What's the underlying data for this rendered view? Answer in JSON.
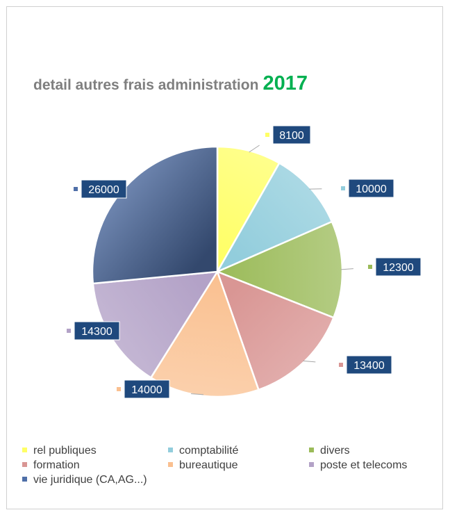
{
  "title": {
    "text": "detail autres frais administration",
    "year": "2017"
  },
  "chart_data": {
    "type": "pie",
    "title": "detail autres frais administration 2017",
    "slices": [
      {
        "label": "rel publiques",
        "value": 8100,
        "color": "#ffff66"
      },
      {
        "label": "comptabilité",
        "value": 10000,
        "color": "#92cddc"
      },
      {
        "label": "divers",
        "value": 12300,
        "color": "#9bbb59"
      },
      {
        "label": "formation",
        "value": 13400,
        "color": "#d99694"
      },
      {
        "label": "bureautique",
        "value": 14000,
        "color": "#fac090"
      },
      {
        "label": "poste et telecoms",
        "value": 14300,
        "color": "#b3a2c7"
      },
      {
        "label": "vie juridique (CA,AG...)",
        "value": 26000,
        "color": "#4f6fa8"
      }
    ],
    "start_angle": "12 o'clock",
    "direction": "clockwise",
    "data_label_style": "white text on dark blue box",
    "legend_position": "bottom"
  },
  "colors": {
    "title_text": "#7f7f7f",
    "year_text": "#00b050",
    "label_box": "#1f497d"
  }
}
